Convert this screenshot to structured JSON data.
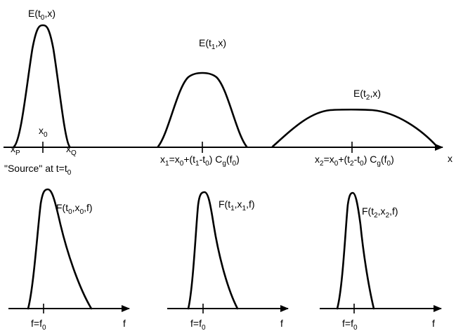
{
  "top_panel": {
    "axis_label": "x",
    "pulses": [
      {
        "label": {
          "base": "E(t",
          "sub1": "0",
          "mid": ",x)"
        }
      },
      {
        "label": {
          "base": "E(t",
          "sub1": "1",
          "mid": ",x)"
        }
      },
      {
        "label": {
          "base": "E(t",
          "sub1": "2",
          "mid": ",x)"
        }
      }
    ],
    "source_labels": {
      "xp": {
        "base": "x",
        "sub": "P"
      },
      "x0": {
        "base": "x",
        "sub": "0"
      },
      "xq": {
        "base": "x",
        "sub": "Q"
      },
      "source_text": {
        "base": "\"Source\" at t=t",
        "sub": "0"
      }
    },
    "positions": {
      "x1": {
        "a": "x",
        "a_sub": "1",
        "b": "=x",
        "b_sub": "0",
        "c": "+(t",
        "c_sub": "1",
        "d": "-t",
        "d_sub": "0",
        "e": ") C",
        "e_sub": "g",
        "f": "(f",
        "f_sub": "0",
        "g": ")"
      },
      "x2": {
        "a": "x",
        "a_sub": "2",
        "b": "=x",
        "b_sub": "0",
        "c": "+(t",
        "c_sub": "2",
        "d": "-t",
        "d_sub": "0",
        "e": ") C",
        "e_sub": "g",
        "f": "(f",
        "f_sub": "0",
        "g": ")"
      }
    }
  },
  "bottom_panels": [
    {
      "label": {
        "a": "F(t",
        "a_sub": "0",
        "b": ",x",
        "b_sub": "0",
        "c": ",f)"
      },
      "tick": {
        "base": "f=f",
        "sub": "0"
      },
      "axis_label": "f"
    },
    {
      "label": {
        "a": "F(t",
        "a_sub": "1",
        "b": ",x",
        "b_sub": "1",
        "c": ",f)"
      },
      "tick": {
        "base": "f=f",
        "sub": "0"
      },
      "axis_label": "f"
    },
    {
      "label": {
        "a": "F(t",
        "a_sub": "2",
        "b": ",x",
        "b_sub": "2",
        "c": ",f)"
      },
      "tick": {
        "base": "f=f",
        "sub": "0"
      },
      "axis_label": "f"
    }
  ]
}
